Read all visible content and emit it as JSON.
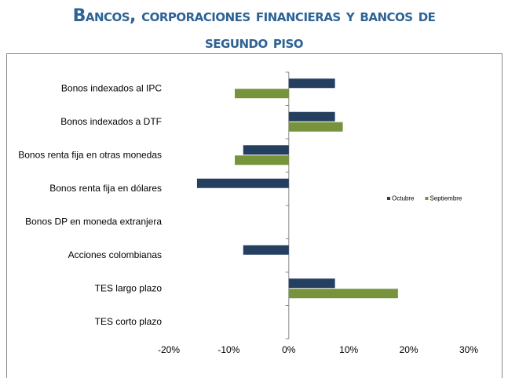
{
  "chart_data": {
    "type": "barh",
    "title": "Bancos, corporaciones financieras y bancos de segundo piso",
    "categories": [
      "Bonos indexados al IPC",
      "Bonos indexados a DTF",
      "Bonos renta fija en otras monedas",
      "Bonos renta fija en dólares",
      "Bonos DP en moneda extranjera",
      "Acciones colombianas",
      "TES largo plazo",
      "TES corto plazo"
    ],
    "series": [
      {
        "name": "Octubre",
        "color": "#243f60",
        "values": [
          7.7,
          7.7,
          -7.6,
          -15.3,
          0,
          -7.6,
          7.7,
          0
        ]
      },
      {
        "name": "Septiembre",
        "color": "#77933c",
        "values": [
          -9.0,
          9.0,
          -9.0,
          0,
          0,
          0,
          18.2,
          0
        ]
      }
    ],
    "xlim": [
      -20,
      30
    ],
    "xticks": [
      {
        "value": -20,
        "label": "-20%"
      },
      {
        "value": -10,
        "label": "-10%"
      },
      {
        "value": 0,
        "label": "0%"
      },
      {
        "value": 10,
        "label": "10%"
      },
      {
        "value": 20,
        "label": "20%"
      },
      {
        "value": 30,
        "label": "30%"
      }
    ],
    "legend": "right"
  }
}
